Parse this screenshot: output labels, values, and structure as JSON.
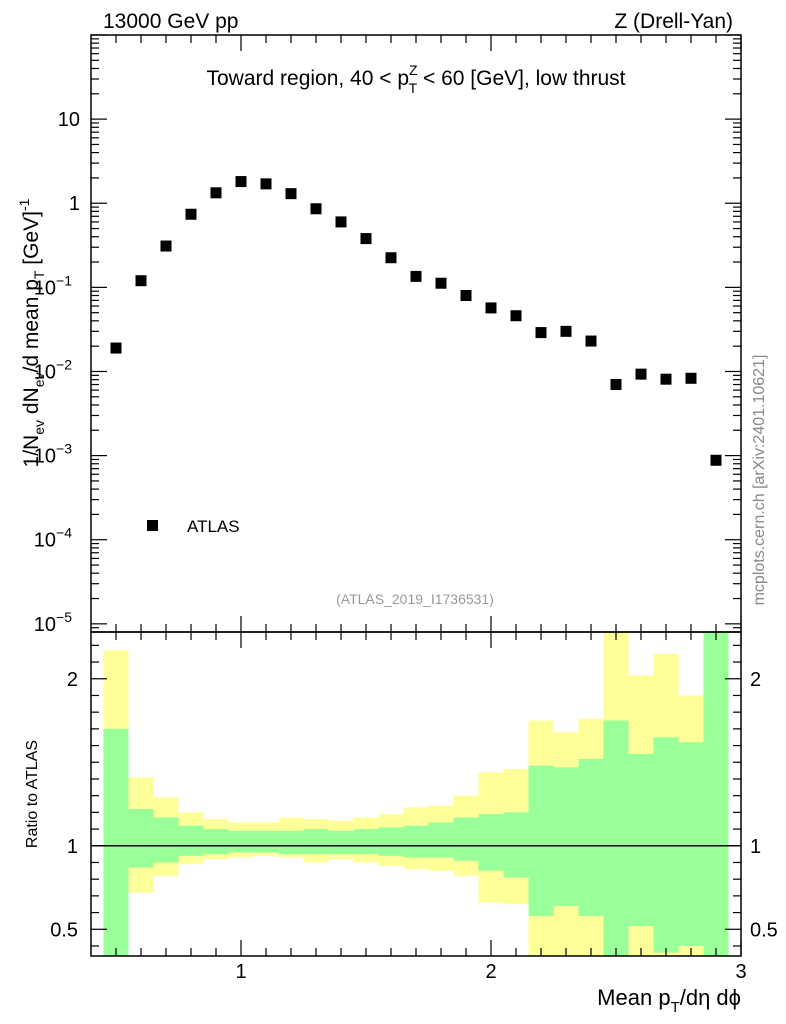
{
  "header": {
    "left": "13000 GeV pp",
    "right": "Z (Drell-Yan)"
  },
  "side_label": "mcplots.cern.ch [arXiv:2401.10621]",
  "chart_data": [
    {
      "type": "scatter",
      "panel": "main",
      "title": "Toward region, 40 < p_T^Z < 60 [GeV], low thrust",
      "title_parts": {
        "prefix": "Toward region, 40 < p",
        "sub": "T",
        "sup": "Z",
        "suffix": " < 60 [GeV], low thrust"
      },
      "ylabel": "1/N_ev dN_ev/d mean p_T [GeV]^-1",
      "yscale": "log",
      "ylim": [
        8e-06,
        100
      ],
      "xlim": [
        0.4,
        3.0
      ],
      "yticks": [
        {
          "value": 1e-05,
          "base": "10",
          "exp": "−5"
        },
        {
          "value": 0.0001,
          "base": "10",
          "exp": "−4"
        },
        {
          "value": 0.001,
          "base": "10",
          "exp": "−3"
        },
        {
          "value": 0.01,
          "base": "10",
          "exp": "−2"
        },
        {
          "value": 0.1,
          "base": "10",
          "exp": "−1"
        },
        {
          "value": 1,
          "base": "1",
          "exp": ""
        },
        {
          "value": 10,
          "base": "10",
          "exp": ""
        }
      ],
      "watermark": "(ATLAS_2019_I1736531)",
      "legend": {
        "label": "ATLAS",
        "position": "bottom-left"
      },
      "series": [
        {
          "name": "ATLAS",
          "x": [
            0.5,
            0.6,
            0.7,
            0.8,
            0.9,
            1.0,
            1.1,
            1.2,
            1.3,
            1.4,
            1.5,
            1.6,
            1.7,
            1.8,
            1.9,
            2.0,
            2.1,
            2.2,
            2.3,
            2.4,
            2.5,
            2.6,
            2.7,
            2.8,
            2.9
          ],
          "y": [
            0.019,
            0.12,
            0.31,
            0.74,
            1.33,
            1.81,
            1.7,
            1.3,
            0.86,
            0.6,
            0.38,
            0.225,
            0.135,
            0.112,
            0.08,
            0.057,
            0.046,
            0.029,
            0.03,
            0.023,
            0.007,
            0.0093,
            0.0081,
            0.0083,
            0.00088
          ]
        }
      ]
    },
    {
      "type": "area",
      "panel": "ratio",
      "ylabel": "Ratio to ATLAS",
      "xlabel": "Mean p_T/dη dϕ",
      "xlabel_parts": {
        "prefix": "Mean p",
        "sub": "T",
        "suffix": "/dη dϕ"
      },
      "xlim": [
        0.4,
        3.0
      ],
      "ylim": [
        0.34,
        2.28
      ],
      "xticks": [
        {
          "value": 1,
          "label": "1"
        },
        {
          "value": 2,
          "label": "2"
        },
        {
          "value": 3,
          "label": "3"
        }
      ],
      "yticks": [
        {
          "value": 0.5,
          "label": "0.5"
        },
        {
          "value": 1,
          "label": "1"
        },
        {
          "value": 2,
          "label": "2"
        }
      ],
      "reference_line": 1,
      "bin_edges": [
        0.45,
        0.55,
        0.65,
        0.75,
        0.85,
        0.95,
        1.05,
        1.15,
        1.25,
        1.35,
        1.45,
        1.55,
        1.65,
        1.75,
        1.85,
        1.95,
        2.05,
        2.15,
        2.25,
        2.35,
        2.45,
        2.55,
        2.65,
        2.75,
        2.85,
        2.95
      ],
      "yellow_band": {
        "upper": [
          2.17,
          1.41,
          1.29,
          1.2,
          1.16,
          1.14,
          1.14,
          1.17,
          1.16,
          1.15,
          1.17,
          1.19,
          1.23,
          1.24,
          1.3,
          1.44,
          1.46,
          1.75,
          1.68,
          1.76,
          2.28,
          2.02,
          2.15,
          1.9,
          2.28
        ],
        "lower": [
          0.34,
          0.72,
          0.82,
          0.89,
          0.92,
          0.93,
          0.94,
          0.93,
          0.9,
          0.92,
          0.9,
          0.88,
          0.86,
          0.85,
          0.82,
          0.66,
          0.65,
          0.34,
          0.34,
          0.34,
          0.34,
          0.34,
          0.34,
          0.34,
          0.34
        ]
      },
      "green_band": {
        "upper": [
          1.7,
          1.22,
          1.17,
          1.12,
          1.1,
          1.09,
          1.09,
          1.09,
          1.1,
          1.09,
          1.1,
          1.11,
          1.12,
          1.14,
          1.17,
          1.19,
          1.2,
          1.48,
          1.47,
          1.52,
          1.75,
          1.55,
          1.65,
          1.62,
          2.28
        ],
        "lower": [
          0.34,
          0.87,
          0.9,
          0.94,
          0.95,
          0.96,
          0.96,
          0.95,
          0.95,
          0.95,
          0.95,
          0.94,
          0.93,
          0.93,
          0.91,
          0.85,
          0.81,
          0.58,
          0.64,
          0.58,
          0.34,
          0.52,
          0.36,
          0.4,
          0.34
        ]
      }
    }
  ]
}
